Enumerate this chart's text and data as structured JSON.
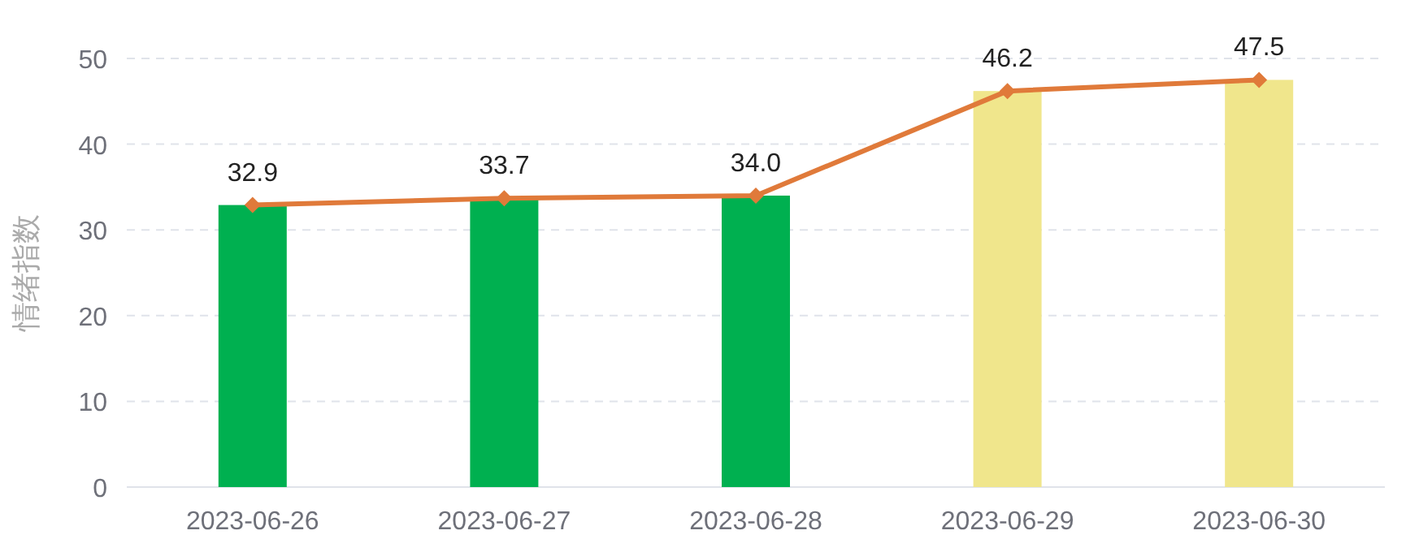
{
  "chart_data": {
    "type": "bar",
    "ylabel": "情绪指数",
    "categories": [
      "2023-06-26",
      "2023-06-27",
      "2023-06-28",
      "2023-06-29",
      "2023-06-30"
    ],
    "series": [
      {
        "colors": [
          "#00b050",
          "#00b050",
          "#00b050",
          "#f0e68c",
          "#f0e68c"
        ],
        "values": [
          32.9,
          33.7,
          34.0,
          46.2,
          47.5
        ]
      },
      {
        "type": "line",
        "color": "#e07a3a",
        "marker": "diamond",
        "values": [
          32.9,
          33.7,
          34.0,
          46.2,
          47.5
        ],
        "value_labels": [
          "32.9",
          "33.7",
          "34.0",
          "46.2",
          "47.5"
        ]
      }
    ],
    "ylim": [
      0,
      50
    ],
    "yticks": [
      0,
      10,
      20,
      30,
      40,
      50
    ],
    "grid": "y"
  }
}
